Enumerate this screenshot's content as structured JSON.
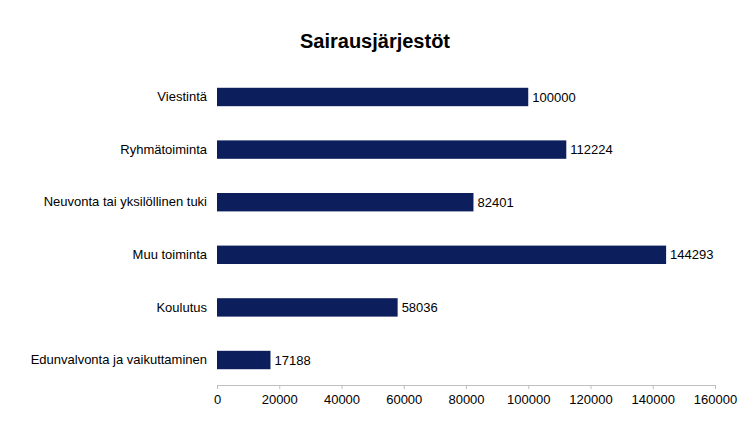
{
  "chart_data": {
    "type": "bar",
    "title": "Sairausjärjestöt",
    "orientation": "horizontal",
    "categories": [
      "Viestintä",
      "Ryhmätoiminta",
      "Neuvonta tai yksilöllinen tuki",
      "Muu toiminta",
      "Koulutus",
      "Edunvalvonta ja vaikuttaminen"
    ],
    "values": [
      100000,
      112224,
      82401,
      144293,
      58036,
      17188
    ],
    "color": "#0c1f5c",
    "xlim": [
      0,
      160000
    ],
    "xticks": [
      0,
      20000,
      40000,
      60000,
      80000,
      100000,
      120000,
      140000,
      160000
    ],
    "grid": false,
    "data_labels": true
  }
}
